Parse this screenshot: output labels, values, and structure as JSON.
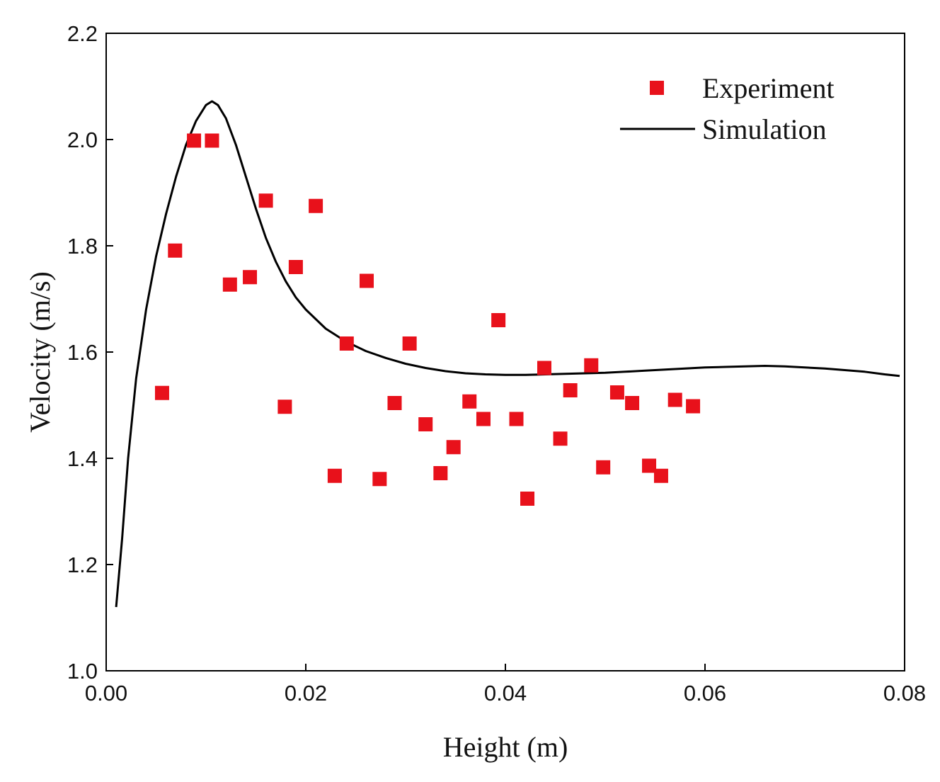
{
  "chart_data": {
    "type": "scatter",
    "title": "",
    "xlabel": "Height (m)",
    "ylabel": "Velocity (m/s)",
    "xlim": [
      0,
      0.08
    ],
    "ylim": [
      1.0,
      2.2
    ],
    "xticks": [
      0,
      0.02,
      0.04,
      0.06,
      0.08
    ],
    "xtick_labels": [
      "0.00",
      "0.02",
      "0.04",
      "0.06",
      "0.08"
    ],
    "yticks": [
      1.0,
      1.2,
      1.4,
      1.6,
      1.8,
      2.0,
      2.2
    ],
    "ytick_labels": [
      "1.0",
      "1.2",
      "1.4",
      "1.6",
      "1.8",
      "2.0",
      "2.2"
    ],
    "grid": false,
    "legend_position": "top-right",
    "series": [
      {
        "name": "Experiment",
        "kind": "scatter",
        "marker": "square",
        "color": "#e8111b",
        "points": [
          [
            0.0056,
            1.523
          ],
          [
            0.0069,
            1.791
          ],
          [
            0.0088,
            1.998
          ],
          [
            0.0106,
            1.998
          ],
          [
            0.0124,
            1.727
          ],
          [
            0.0144,
            1.741
          ],
          [
            0.016,
            1.885
          ],
          [
            0.0179,
            1.497
          ],
          [
            0.019,
            1.76
          ],
          [
            0.021,
            1.875
          ],
          [
            0.0229,
            1.367
          ],
          [
            0.0241,
            1.616
          ],
          [
            0.0261,
            1.734
          ],
          [
            0.0274,
            1.361
          ],
          [
            0.0289,
            1.504
          ],
          [
            0.0304,
            1.616
          ],
          [
            0.032,
            1.464
          ],
          [
            0.0335,
            1.372
          ],
          [
            0.0348,
            1.421
          ],
          [
            0.0364,
            1.507
          ],
          [
            0.0378,
            1.474
          ],
          [
            0.0393,
            1.66
          ],
          [
            0.0411,
            1.474
          ],
          [
            0.0422,
            1.324
          ],
          [
            0.0439,
            1.57
          ],
          [
            0.0455,
            1.437
          ],
          [
            0.0465,
            1.528
          ],
          [
            0.0486,
            1.575
          ],
          [
            0.0498,
            1.383
          ],
          [
            0.0512,
            1.524
          ],
          [
            0.0527,
            1.504
          ],
          [
            0.0544,
            1.386
          ],
          [
            0.0556,
            1.367
          ],
          [
            0.057,
            1.51
          ],
          [
            0.0588,
            1.498
          ]
        ]
      },
      {
        "name": "Simulation",
        "kind": "line",
        "color": "#000000",
        "points": [
          [
            0.001,
            1.12
          ],
          [
            0.0016,
            1.25
          ],
          [
            0.0022,
            1.4
          ],
          [
            0.003,
            1.55
          ],
          [
            0.004,
            1.68
          ],
          [
            0.005,
            1.78
          ],
          [
            0.006,
            1.86
          ],
          [
            0.007,
            1.93
          ],
          [
            0.008,
            1.99
          ],
          [
            0.009,
            2.035
          ],
          [
            0.01,
            2.065
          ],
          [
            0.0106,
            2.072
          ],
          [
            0.0112,
            2.065
          ],
          [
            0.012,
            2.04
          ],
          [
            0.013,
            1.99
          ],
          [
            0.014,
            1.93
          ],
          [
            0.015,
            1.87
          ],
          [
            0.016,
            1.815
          ],
          [
            0.017,
            1.77
          ],
          [
            0.018,
            1.733
          ],
          [
            0.019,
            1.703
          ],
          [
            0.02,
            1.68
          ],
          [
            0.022,
            1.644
          ],
          [
            0.024,
            1.62
          ],
          [
            0.026,
            1.602
          ],
          [
            0.028,
            1.589
          ],
          [
            0.03,
            1.578
          ],
          [
            0.032,
            1.57
          ],
          [
            0.034,
            1.564
          ],
          [
            0.036,
            1.56
          ],
          [
            0.038,
            1.558
          ],
          [
            0.04,
            1.557
          ],
          [
            0.042,
            1.557
          ],
          [
            0.044,
            1.558
          ],
          [
            0.046,
            1.559
          ],
          [
            0.048,
            1.56
          ],
          [
            0.05,
            1.561
          ],
          [
            0.052,
            1.563
          ],
          [
            0.054,
            1.565
          ],
          [
            0.056,
            1.567
          ],
          [
            0.058,
            1.569
          ],
          [
            0.06,
            1.571
          ],
          [
            0.062,
            1.572
          ],
          [
            0.064,
            1.573
          ],
          [
            0.066,
            1.574
          ],
          [
            0.068,
            1.573
          ],
          [
            0.07,
            1.571
          ],
          [
            0.072,
            1.569
          ],
          [
            0.074,
            1.566
          ],
          [
            0.076,
            1.563
          ],
          [
            0.078,
            1.558
          ],
          [
            0.0795,
            1.555
          ]
        ]
      }
    ]
  }
}
